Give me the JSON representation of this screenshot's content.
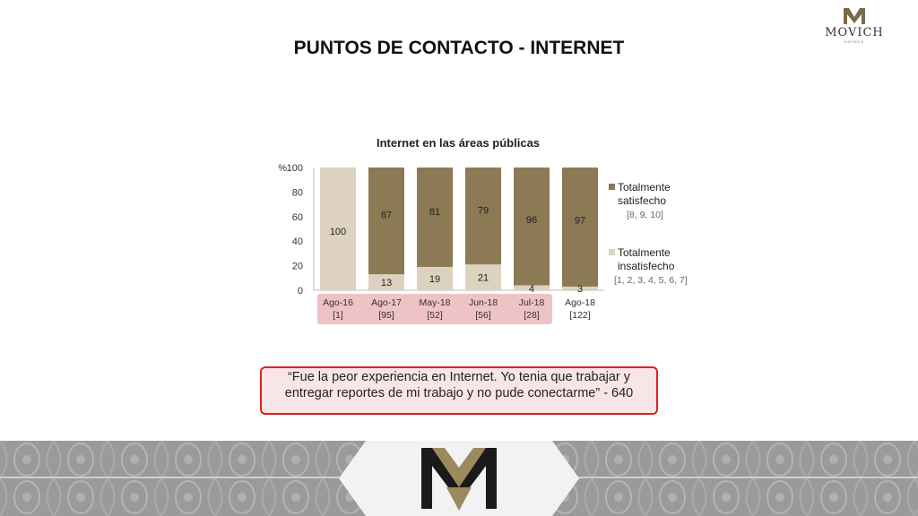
{
  "header": {
    "brand": "MOVICH",
    "brand_sub": "HOTELS"
  },
  "page_title": "PUNTOS DE CONTACTO - INTERNET",
  "chart_data": {
    "type": "bar",
    "stacked": true,
    "title": "Internet en las áreas públicas",
    "ylabel": "%",
    "ylim": [
      0,
      100
    ],
    "yticks": [
      "0",
      "20",
      "40",
      "60",
      "80",
      "100"
    ],
    "categories": [
      "Ago-16",
      "Ago-17",
      "May-18",
      "Jun-18",
      "Jul-18",
      "Ago-18"
    ],
    "category_counts": [
      "[1]",
      "[95]",
      "[52]",
      "[56]",
      "[28]",
      "[122]"
    ],
    "highlighted_categories": [
      0,
      1,
      2,
      3,
      4
    ],
    "series": [
      {
        "name": "Totalmente insatisfecho",
        "range": "[1, 2, 3, 4, 5, 6, 7]",
        "color": "#dcd2bf",
        "values": [
          100,
          13,
          19,
          21,
          4,
          3
        ]
      },
      {
        "name": "Totalmente satisfecho",
        "range": "[8, 9, 10]",
        "color": "#8b7a54",
        "values": [
          0,
          87,
          81,
          79,
          96,
          97
        ]
      }
    ],
    "legend_position": "right",
    "grid": false
  },
  "quote": "“Fue la peor experiencia en Internet. Yo tenia que trabajar y entregar reportes de mi trabajo y no pude conectarme” - 640"
}
